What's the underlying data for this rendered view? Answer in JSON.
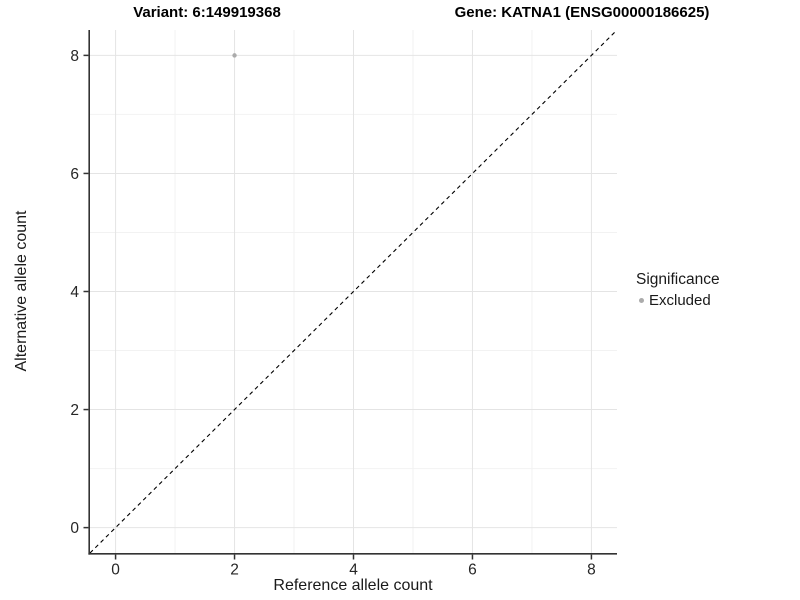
{
  "chart_data": {
    "type": "scatter",
    "title_left": "Variant: 6:149919368",
    "title_right": "Gene: KATNA1 (ENSG00000186625)",
    "xlabel": "Reference allele count",
    "ylabel": "Alternative allele count",
    "xlim": [
      -0.43,
      8.43
    ],
    "ylim": [
      -0.43,
      8.43
    ],
    "xticks": [
      0,
      2,
      4,
      6,
      8
    ],
    "yticks": [
      0,
      2,
      4,
      6,
      8
    ],
    "minor_xticks": [
      1,
      3,
      5,
      7
    ],
    "minor_yticks": [
      1,
      3,
      5,
      7
    ],
    "grid": "major-even-minor-odd",
    "points": [
      {
        "x": 2,
        "y": 8,
        "group": "Excluded"
      }
    ],
    "identity_line": {
      "slope": 1,
      "intercept": 0,
      "style": "dashed"
    },
    "legend": {
      "title": "Significance",
      "position": "right",
      "items": [
        {
          "label": "Excluded",
          "color": "#ababab"
        }
      ]
    }
  },
  "colors": {
    "point": "#ababab",
    "grid_major": "#e4e4e4",
    "grid_minor": "#f2f2f2",
    "axis": "#333333",
    "tick_label": "#262626",
    "dashed_line": "#000000",
    "background": "#ffffff"
  }
}
